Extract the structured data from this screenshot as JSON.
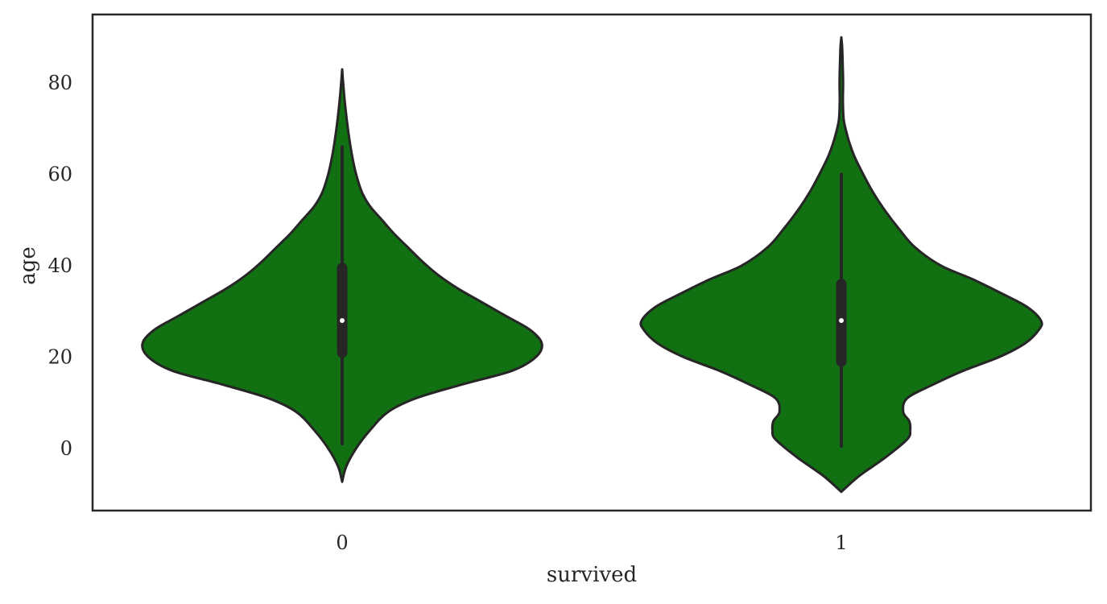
{
  "chart_data": {
    "type": "violin",
    "title": "",
    "xlabel": "survived",
    "ylabel": "age",
    "categories": [
      "0",
      "1"
    ],
    "ylim": [
      -13.6,
      95.0
    ],
    "yticks": [
      0,
      20,
      40,
      60,
      80
    ],
    "fill_color": "#117011",
    "outline_color": "#262626",
    "median_color": "#ffffff",
    "violins": [
      {
        "category": "0",
        "min": 1,
        "q1": 21,
        "median": 28,
        "q3": 39.5,
        "whisker_high": 66,
        "kde_range": [
          -7.3,
          83.0
        ],
        "density_profile": [
          [
            -7.3,
            0.0
          ],
          [
            -4,
            0.02
          ],
          [
            0,
            0.07
          ],
          [
            4,
            0.14
          ],
          [
            8,
            0.23
          ],
          [
            11,
            0.37
          ],
          [
            14,
            0.6
          ],
          [
            17,
            0.85
          ],
          [
            20,
            0.97
          ],
          [
            23,
            1.0
          ],
          [
            26,
            0.94
          ],
          [
            29,
            0.82
          ],
          [
            32,
            0.7
          ],
          [
            35,
            0.58
          ],
          [
            38,
            0.48
          ],
          [
            41,
            0.4
          ],
          [
            44,
            0.33
          ],
          [
            47,
            0.26
          ],
          [
            50,
            0.2
          ],
          [
            53,
            0.14
          ],
          [
            56,
            0.1
          ],
          [
            60,
            0.07
          ],
          [
            64,
            0.05
          ],
          [
            68,
            0.035
          ],
          [
            72,
            0.023
          ],
          [
            76,
            0.013
          ],
          [
            80,
            0.005
          ],
          [
            83,
            0.0
          ]
        ]
      },
      {
        "category": "1",
        "min": 0.5,
        "q1": 19,
        "median": 28,
        "q3": 36,
        "whisker_high": 60,
        "kde_range": [
          -9.5,
          90.0
        ],
        "density_profile": [
          [
            -9.5,
            0.0
          ],
          [
            -6,
            0.09
          ],
          [
            -2,
            0.22
          ],
          [
            2,
            0.33
          ],
          [
            4,
            0.345
          ],
          [
            6,
            0.34
          ],
          [
            8,
            0.31
          ],
          [
            11,
            0.33
          ],
          [
            14,
            0.46
          ],
          [
            17,
            0.61
          ],
          [
            20,
            0.79
          ],
          [
            23,
            0.92
          ],
          [
            26,
            0.99
          ],
          [
            28,
            1.0
          ],
          [
            31,
            0.93
          ],
          [
            34,
            0.8
          ],
          [
            37,
            0.66
          ],
          [
            40,
            0.5
          ],
          [
            44,
            0.37
          ],
          [
            48,
            0.29
          ],
          [
            52,
            0.22
          ],
          [
            56,
            0.16
          ],
          [
            60,
            0.11
          ],
          [
            64,
            0.065
          ],
          [
            67,
            0.04
          ],
          [
            69,
            0.027
          ],
          [
            72,
            0.012
          ],
          [
            76,
            0.008
          ],
          [
            80,
            0.009
          ],
          [
            84,
            0.007
          ],
          [
            88,
            0.004
          ],
          [
            90,
            0.0
          ]
        ]
      }
    ]
  }
}
